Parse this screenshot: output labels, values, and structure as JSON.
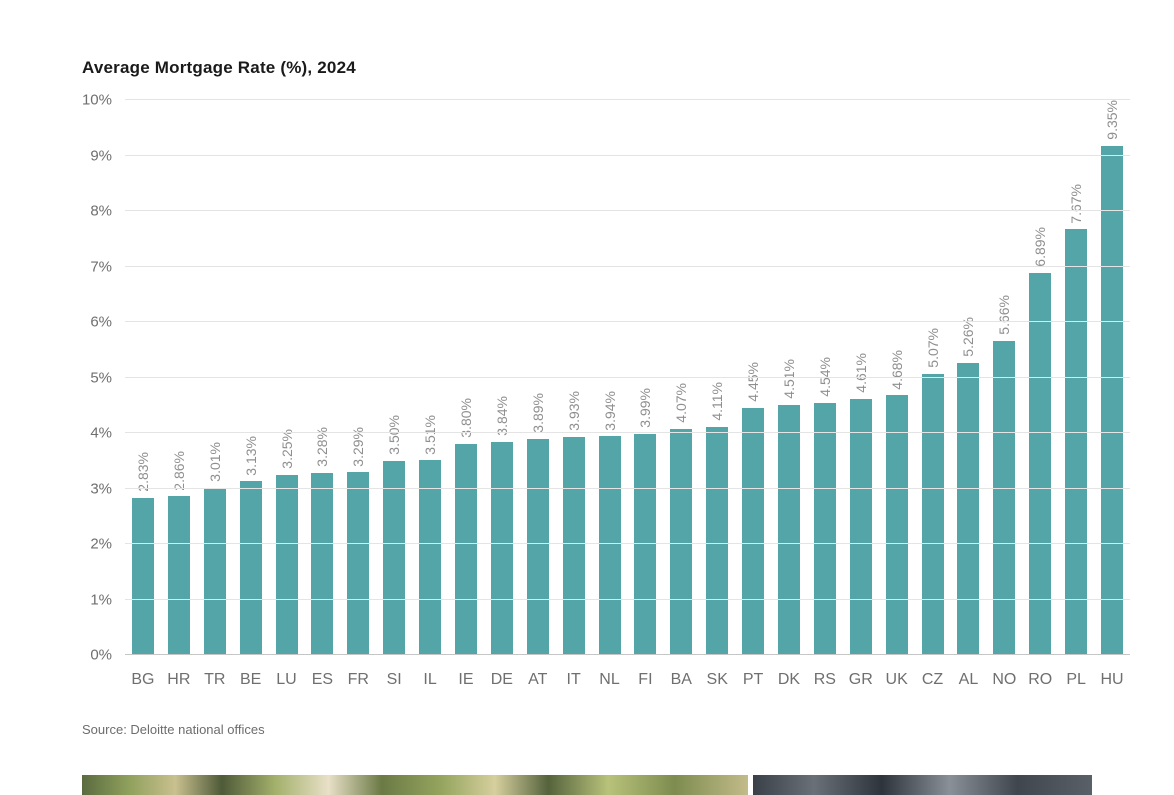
{
  "title": "Average Mortgage Rate (%), 2024",
  "source": "Source: Deloitte national offices",
  "colors": {
    "bar": "#53a5a8",
    "gridline": "#e4e4e4",
    "value_label": "#8f8f8f",
    "axis_label": "#6f6f6f"
  },
  "chart_data": {
    "type": "bar",
    "title": "Average Mortgage Rate (%), 2024",
    "categories": [
      "BG",
      "HR",
      "TR",
      "BE",
      "LU",
      "ES",
      "FR",
      "SI",
      "IL",
      "IE",
      "DE",
      "AT",
      "IT",
      "NL",
      "FI",
      "BA",
      "SK",
      "PT",
      "DK",
      "RS",
      "GR",
      "UK",
      "CZ",
      "AL",
      "NO",
      "RO",
      "PL",
      "HU"
    ],
    "values": [
      2.83,
      2.86,
      3.01,
      3.13,
      3.25,
      3.28,
      3.29,
      3.5,
      3.51,
      3.8,
      3.84,
      3.89,
      3.93,
      3.94,
      3.99,
      4.07,
      4.11,
      4.45,
      4.51,
      4.54,
      4.61,
      4.68,
      5.07,
      5.26,
      5.66,
      6.89,
      7.67,
      9.35
    ],
    "value_labels": [
      "2.83%",
      "2.86%",
      "3.01%",
      "3.13%",
      "3.25%",
      "3.28%",
      "3.29%",
      "3.50%",
      "3.51%",
      "3.80%",
      "3.84%",
      "3.89%",
      "3.93%",
      "3.94%",
      "3.99%",
      "4.07%",
      "4.11%",
      "4.45%",
      "4.51%",
      "4.54%",
      "4.61%",
      "4.68%",
      "5.07%",
      "5.26%",
      "5.66%",
      "6.89%",
      "7.67%",
      "9.35%"
    ],
    "xlabel": "",
    "ylabel": "",
    "ylim": [
      0,
      10
    ],
    "yticks": [
      "0%",
      "1%",
      "2%",
      "3%",
      "4%",
      "5%",
      "6%",
      "7%",
      "8%",
      "9%",
      "10%"
    ],
    "grid": true,
    "legend": "none",
    "bar_color": "#53a5a8"
  }
}
